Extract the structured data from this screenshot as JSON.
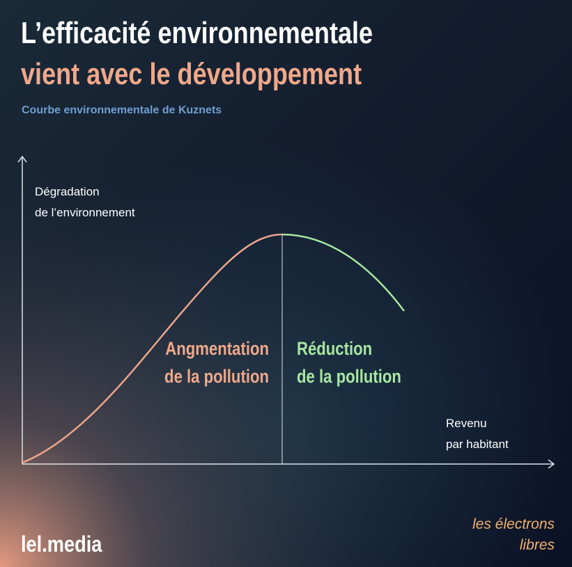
{
  "header": {
    "title_line_1": "L’efficacité environnementale",
    "title_line_2": "vient avec le développement",
    "subtitle": "Courbe environnementale de Kuznets"
  },
  "diagram": {
    "y_axis_label": [
      "Dégradation",
      "de l’environnement"
    ],
    "x_axis_label": [
      "Revenu",
      "par habitant"
    ],
    "left_zone": [
      "Angmentation",
      "de la pollution"
    ],
    "right_zone": [
      "Réduction",
      "de la pollution"
    ]
  },
  "footer": {
    "site": "lel.media",
    "logo": [
      "les électrons",
      "libres"
    ]
  }
}
